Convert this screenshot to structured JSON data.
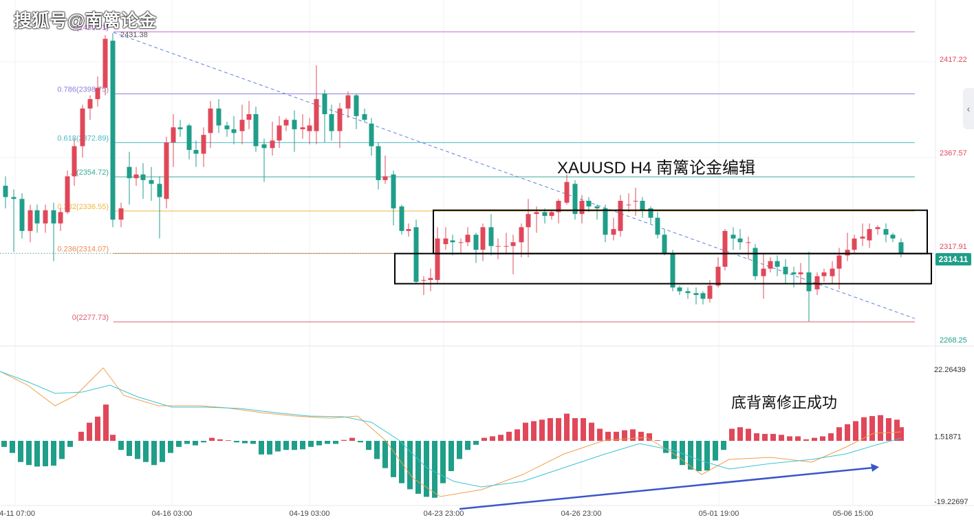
{
  "watermark": "搜狐号@南篱论金",
  "title": "XAUUSD   H4   南篱论金编辑",
  "annotation": "底背离修正成功",
  "current_price": "2314.11",
  "colors": {
    "up": "#e0485a",
    "down": "#1f9e89",
    "bg": "#ffffff",
    "grid": "#eef0f3"
  },
  "icons": {
    "side_tab": "chevron-left-icon"
  },
  "chart_data": [
    {
      "type": "candlestick",
      "symbol": "XAUUSD",
      "timeframe": "H4",
      "ylim": [
        2268.25,
        2434
      ],
      "y_ticks": [
        "2417.22",
        "2367.57",
        "2317.91",
        "2268.25"
      ],
      "x_ticks": [
        "04-11 07:00",
        "04-16 03:00",
        "04-19 03:00",
        "04-23 23:00",
        "04-26 23:00",
        "05-01 19:00",
        "05-06 15:00"
      ],
      "fib_levels": [
        {
          "label": "1(2431.71)",
          "value": 2431.71,
          "color": "#c063d6"
        },
        {
          "label": "0.786(2398.75)",
          "value": 2398.75,
          "color": "#8b7fd9"
        },
        {
          "label": "0.618(2372.89)",
          "value": 2372.89,
          "color": "#4cb8c4"
        },
        {
          "label": ".5(2354.72)",
          "value": 2354.72,
          "color": "#3aa99a"
        },
        {
          "label": "0.382(2336.55)",
          "value": 2336.55,
          "color": "#f0b43c"
        },
        {
          "label": "0.236(2314.07)",
          "value": 2314.07,
          "color": "#ef8a4e"
        },
        {
          "label": "0(2277.73)",
          "value": 2277.73,
          "color": "#e05a70"
        }
      ],
      "high_label": "2431.38",
      "trendline": {
        "from": [
          165,
          2431.38
        ],
        "to": [
          1330,
          2279.5
        ]
      },
      "boxes": [
        {
          "x": [
            630,
            1348
          ],
          "y": [
            2337,
            2314
          ]
        },
        {
          "x": [
            574,
            1354
          ],
          "y": [
            2314,
            2298
          ]
        }
      ],
      "candles": [
        [
          8,
          2350,
          2344,
          2355,
          2338
        ],
        [
          20,
          2344,
          2343,
          2348,
          2315
        ],
        [
          32,
          2343,
          2326,
          2346,
          2322
        ],
        [
          44,
          2326,
          2337,
          2340,
          2320
        ],
        [
          54,
          2337,
          2330,
          2340,
          2325
        ],
        [
          66,
          2330,
          2337,
          2340,
          2325
        ],
        [
          78,
          2337,
          2330,
          2341,
          2310
        ],
        [
          88,
          2330,
          2336,
          2338,
          2326
        ],
        [
          98,
          2336,
          2355,
          2358,
          2335
        ],
        [
          108,
          2355,
          2371,
          2375,
          2350
        ],
        [
          120,
          2371,
          2391,
          2393,
          2365
        ],
        [
          131,
          2391,
          2396,
          2398,
          2385
        ],
        [
          142,
          2396,
          2402,
          2408,
          2392
        ],
        [
          153,
          2402,
          2428,
          2430,
          2398
        ],
        [
          164,
          2427,
          2332,
          2431,
          2328
        ],
        [
          176,
          2332,
          2338,
          2341,
          2328
        ],
        [
          188,
          2360,
          2354,
          2368,
          2340
        ],
        [
          198,
          2354,
          2356,
          2360,
          2350
        ],
        [
          208,
          2356,
          2353,
          2362,
          2343
        ],
        [
          220,
          2353,
          2351,
          2360,
          2342
        ],
        [
          232,
          2351,
          2344,
          2355,
          2322
        ],
        [
          242,
          2343,
          2373,
          2376,
          2338
        ],
        [
          252,
          2373,
          2381,
          2388,
          2360
        ],
        [
          262,
          2381,
          2380,
          2385,
          2376
        ],
        [
          275,
          2382,
          2369,
          2383,
          2364
        ],
        [
          285,
          2369,
          2367,
          2374,
          2360
        ],
        [
          296,
          2367,
          2377,
          2381,
          2360
        ],
        [
          306,
          2378,
          2391,
          2395,
          2370
        ],
        [
          318,
          2391,
          2382,
          2396,
          2378
        ],
        [
          330,
          2382,
          2380,
          2384,
          2376
        ],
        [
          340,
          2380,
          2378,
          2387,
          2372
        ],
        [
          352,
          2379,
          2385,
          2393,
          2372
        ],
        [
          362,
          2385,
          2388,
          2395,
          2380
        ],
        [
          372,
          2388,
          2371,
          2392,
          2368
        ],
        [
          384,
          2372,
          2370,
          2375,
          2352
        ],
        [
          396,
          2370,
          2374,
          2384,
          2366
        ],
        [
          406,
          2374,
          2382,
          2387,
          2370
        ],
        [
          416,
          2382,
          2385,
          2386,
          2379
        ],
        [
          428,
          2385,
          2380,
          2390,
          2368
        ],
        [
          440,
          2380,
          2381,
          2388,
          2375
        ],
        [
          450,
          2379,
          2382,
          2386,
          2372
        ],
        [
          460,
          2379,
          2396,
          2414,
          2372
        ],
        [
          472,
          2399,
          2388,
          2401,
          2373
        ],
        [
          482,
          2388,
          2379,
          2393,
          2374
        ],
        [
          494,
          2379,
          2391,
          2394,
          2370
        ],
        [
          506,
          2391,
          2398,
          2400,
          2386
        ],
        [
          518,
          2398,
          2387,
          2399,
          2380
        ],
        [
          530,
          2388,
          2385,
          2391,
          2384
        ],
        [
          540,
          2383,
          2371,
          2386,
          2366
        ],
        [
          550,
          2371,
          2353,
          2373,
          2348
        ],
        [
          560,
          2353,
          2355,
          2366,
          2351
        ],
        [
          572,
          2356,
          2338,
          2358,
          2329
        ],
        [
          584,
          2339,
          2326,
          2340,
          2324
        ],
        [
          594,
          2326,
          2327,
          2330,
          2323
        ],
        [
          605,
          2328,
          2299,
          2332,
          2298
        ],
        [
          616,
          2300,
          2300,
          2302,
          2292
        ],
        [
          626,
          2300,
          2301,
          2306,
          2294
        ],
        [
          636,
          2300,
          2322,
          2328,
          2298
        ],
        [
          648,
          2319,
          2322,
          2328,
          2316
        ],
        [
          658,
          2321,
          2320,
          2324,
          2313
        ],
        [
          670,
          2320,
          2320,
          2322,
          2314
        ],
        [
          680,
          2320,
          2324,
          2328,
          2318
        ],
        [
          692,
          2324,
          2316,
          2325,
          2309
        ],
        [
          702,
          2316,
          2328,
          2330,
          2310
        ],
        [
          714,
          2328,
          2318,
          2335,
          2313
        ],
        [
          724,
          2318,
          2318,
          2322,
          2311
        ],
        [
          736,
          2318,
          2318,
          2325,
          2314
        ],
        [
          746,
          2318,
          2320,
          2324,
          2303
        ],
        [
          758,
          2320,
          2328,
          2330,
          2312
        ],
        [
          768,
          2328,
          2335,
          2343,
          2312
        ],
        [
          780,
          2335,
          2336,
          2339,
          2325
        ],
        [
          792,
          2336,
          2334,
          2338,
          2330
        ],
        [
          802,
          2334,
          2336,
          2337,
          2332
        ],
        [
          812,
          2336,
          2342,
          2343,
          2330
        ],
        [
          824,
          2341,
          2352,
          2356,
          2340
        ],
        [
          836,
          2351,
          2335,
          2353,
          2332
        ],
        [
          846,
          2335,
          2342,
          2345,
          2330
        ],
        [
          856,
          2342,
          2339,
          2344,
          2336
        ],
        [
          868,
          2339,
          2338,
          2340,
          2332
        ],
        [
          880,
          2338,
          2324,
          2340,
          2320
        ],
        [
          892,
          2324,
          2327,
          2333,
          2321
        ],
        [
          902,
          2326,
          2342,
          2345,
          2323
        ],
        [
          914,
          2340,
          2340,
          2346,
          2336
        ],
        [
          924,
          2342,
          2342,
          2349,
          2334
        ],
        [
          934,
          2342,
          2337,
          2344,
          2333
        ],
        [
          946,
          2338,
          2333,
          2339,
          2330
        ],
        [
          956,
          2333,
          2324,
          2336,
          2322
        ],
        [
          966,
          2324,
          2314,
          2327,
          2313
        ],
        [
          978,
          2314,
          2296,
          2316,
          2294
        ],
        [
          988,
          2296,
          2294,
          2297,
          2292
        ],
        [
          1000,
          2294,
          2293,
          2296,
          2290
        ],
        [
          1012,
          2293,
          2292,
          2296,
          2287
        ],
        [
          1022,
          2293,
          2290,
          2294,
          2287
        ],
        [
          1032,
          2290,
          2297,
          2300,
          2288
        ],
        [
          1044,
          2297,
          2307,
          2312,
          2296
        ],
        [
          1054,
          2307,
          2326,
          2327,
          2305
        ],
        [
          1066,
          2324,
          2322,
          2328,
          2316
        ],
        [
          1076,
          2322,
          2320,
          2327,
          2316
        ],
        [
          1088,
          2320,
          2320,
          2323,
          2311
        ],
        [
          1098,
          2317,
          2302,
          2319,
          2300
        ],
        [
          1110,
          2302,
          2306,
          2314,
          2290
        ],
        [
          1120,
          2306,
          2310,
          2312,
          2304
        ],
        [
          1130,
          2310,
          2307,
          2313,
          2302
        ],
        [
          1142,
          2307,
          2303,
          2311,
          2298
        ],
        [
          1154,
          2304,
          2303,
          2307,
          2296
        ],
        [
          1164,
          2303,
          2304,
          2309,
          2298
        ],
        [
          1176,
          2304,
          2294,
          2315,
          2278
        ],
        [
          1188,
          2295,
          2302,
          2304,
          2292
        ],
        [
          1198,
          2302,
          2304,
          2306,
          2299
        ],
        [
          1210,
          2302,
          2306,
          2310,
          2298
        ],
        [
          1220,
          2306,
          2313,
          2317,
          2295
        ],
        [
          1232,
          2313,
          2316,
          2325,
          2310
        ],
        [
          1242,
          2316,
          2322,
          2324,
          2314
        ],
        [
          1254,
          2322,
          2323,
          2330,
          2318
        ],
        [
          1264,
          2321,
          2327,
          2330,
          2317
        ],
        [
          1276,
          2327,
          2328,
          2329,
          2324
        ],
        [
          1288,
          2327,
          2324,
          2330,
          2320
        ],
        [
          1298,
          2324,
          2322,
          2325,
          2320
        ],
        [
          1310,
          2320,
          2314,
          2322,
          2312
        ]
      ]
    },
    {
      "type": "macd",
      "ylim": [
        -19.22697,
        22.26439
      ],
      "y_ticks": [
        "22.26439",
        "1.51871",
        "-19.22697"
      ],
      "histogram": [
        [
          6,
          -2
        ],
        [
          18,
          -4
        ],
        [
          30,
          -7
        ],
        [
          42,
          -8
        ],
        [
          54,
          -8.5
        ],
        [
          66,
          -8.4
        ],
        [
          78,
          -8.2
        ],
        [
          90,
          -6
        ],
        [
          102,
          -2
        ],
        [
          118,
          3
        ],
        [
          130,
          6
        ],
        [
          142,
          8
        ],
        [
          154,
          12
        ],
        [
          164,
          2
        ],
        [
          176,
          -3
        ],
        [
          188,
          -5
        ],
        [
          200,
          -6
        ],
        [
          212,
          -7
        ],
        [
          224,
          -8
        ],
        [
          236,
          -7
        ],
        [
          248,
          -4
        ],
        [
          260,
          -2
        ],
        [
          272,
          -1
        ],
        [
          284,
          -1.5
        ],
        [
          296,
          -0.5
        ],
        [
          308,
          1
        ],
        [
          320,
          0.5
        ],
        [
          332,
          0.2
        ],
        [
          344,
          -0.5
        ],
        [
          356,
          -0.8
        ],
        [
          368,
          -1
        ],
        [
          380,
          -4.5
        ],
        [
          392,
          -4.5
        ],
        [
          404,
          -3.5
        ],
        [
          416,
          -3
        ],
        [
          428,
          -3
        ],
        [
          440,
          -2.8
        ],
        [
          452,
          -2
        ],
        [
          464,
          -1.5
        ],
        [
          476,
          -1
        ],
        [
          488,
          -1
        ],
        [
          500,
          0.3
        ],
        [
          512,
          1
        ],
        [
          524,
          -0.5
        ],
        [
          536,
          -3
        ],
        [
          548,
          -6
        ],
        [
          560,
          -9
        ],
        [
          572,
          -12
        ],
        [
          584,
          -14
        ],
        [
          596,
          -16
        ],
        [
          608,
          -17.5
        ],
        [
          620,
          -18.5
        ],
        [
          632,
          -18.8
        ],
        [
          644,
          -14
        ],
        [
          656,
          -10
        ],
        [
          668,
          -6
        ],
        [
          680,
          -3
        ],
        [
          692,
          -1.3
        ],
        [
          704,
          1
        ],
        [
          716,
          1.5
        ],
        [
          728,
          2
        ],
        [
          740,
          3
        ],
        [
          752,
          3.8
        ],
        [
          764,
          6
        ],
        [
          776,
          6.5
        ],
        [
          788,
          7
        ],
        [
          800,
          7.5
        ],
        [
          812,
          7.5
        ],
        [
          824,
          9
        ],
        [
          836,
          7.5
        ],
        [
          848,
          7.5
        ],
        [
          860,
          6
        ],
        [
          872,
          4
        ],
        [
          884,
          3
        ],
        [
          896,
          3
        ],
        [
          908,
          3.5
        ],
        [
          920,
          3.8
        ],
        [
          932,
          3
        ],
        [
          944,
          2.5
        ],
        [
          956,
          0.2
        ],
        [
          968,
          -4
        ],
        [
          980,
          -6
        ],
        [
          992,
          -8
        ],
        [
          1004,
          -9.5
        ],
        [
          1016,
          -10
        ],
        [
          1028,
          -9.8
        ],
        [
          1040,
          -6.5
        ],
        [
          1052,
          -3
        ],
        [
          1064,
          4
        ],
        [
          1076,
          4.5
        ],
        [
          1088,
          4
        ],
        [
          1100,
          2.5
        ],
        [
          1112,
          2.3
        ],
        [
          1124,
          2.3
        ],
        [
          1136,
          2
        ],
        [
          1148,
          1.5
        ],
        [
          1160,
          1.5
        ],
        [
          1172,
          0.5
        ],
        [
          1184,
          1
        ],
        [
          1196,
          1.5
        ],
        [
          1208,
          2.5
        ],
        [
          1220,
          4.5
        ],
        [
          1232,
          5.5
        ],
        [
          1244,
          6.5
        ],
        [
          1256,
          7.8
        ],
        [
          1268,
          8.2
        ],
        [
          1280,
          8.5
        ],
        [
          1292,
          7.5
        ],
        [
          1304,
          7
        ],
        [
          1310,
          4.5
        ]
      ]
    }
  ]
}
